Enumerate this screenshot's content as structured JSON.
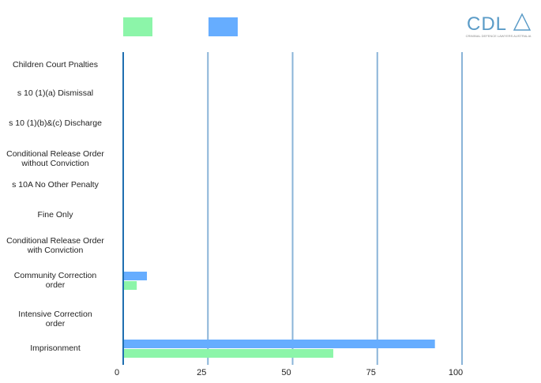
{
  "logo": {
    "text": "CDLA",
    "subtitle": "CRIMINAL DEFENCE LAWYERS AUSTRALIA"
  },
  "chart_data": {
    "type": "bar",
    "orientation": "horizontal",
    "categories": [
      "Children Court Pnalties",
      "s 10 (1)(a) Dismissal",
      "s 10 (1)(b)&(c) Discharge",
      "Conditional Release Order\nwithout Conviction",
      "s 10A No Other Penalty",
      "Fine Only",
      "Conditional Release Order\nwith Conviction",
      "Community Correction\norder",
      "Intensive Correction\norder",
      "Imprisonment"
    ],
    "series": [
      {
        "color": "#66adff",
        "values": [
          0,
          0,
          0,
          0,
          0,
          0,
          0,
          7,
          0,
          92
        ]
      },
      {
        "color": "#8cf5a9",
        "values": [
          0,
          0,
          0,
          0,
          0,
          0,
          0,
          4,
          0,
          62
        ]
      }
    ],
    "xlim": [
      0,
      100
    ],
    "xticks": [
      "0",
      "25",
      "50",
      "75",
      "100"
    ],
    "grid": true,
    "legend": "top-left"
  }
}
